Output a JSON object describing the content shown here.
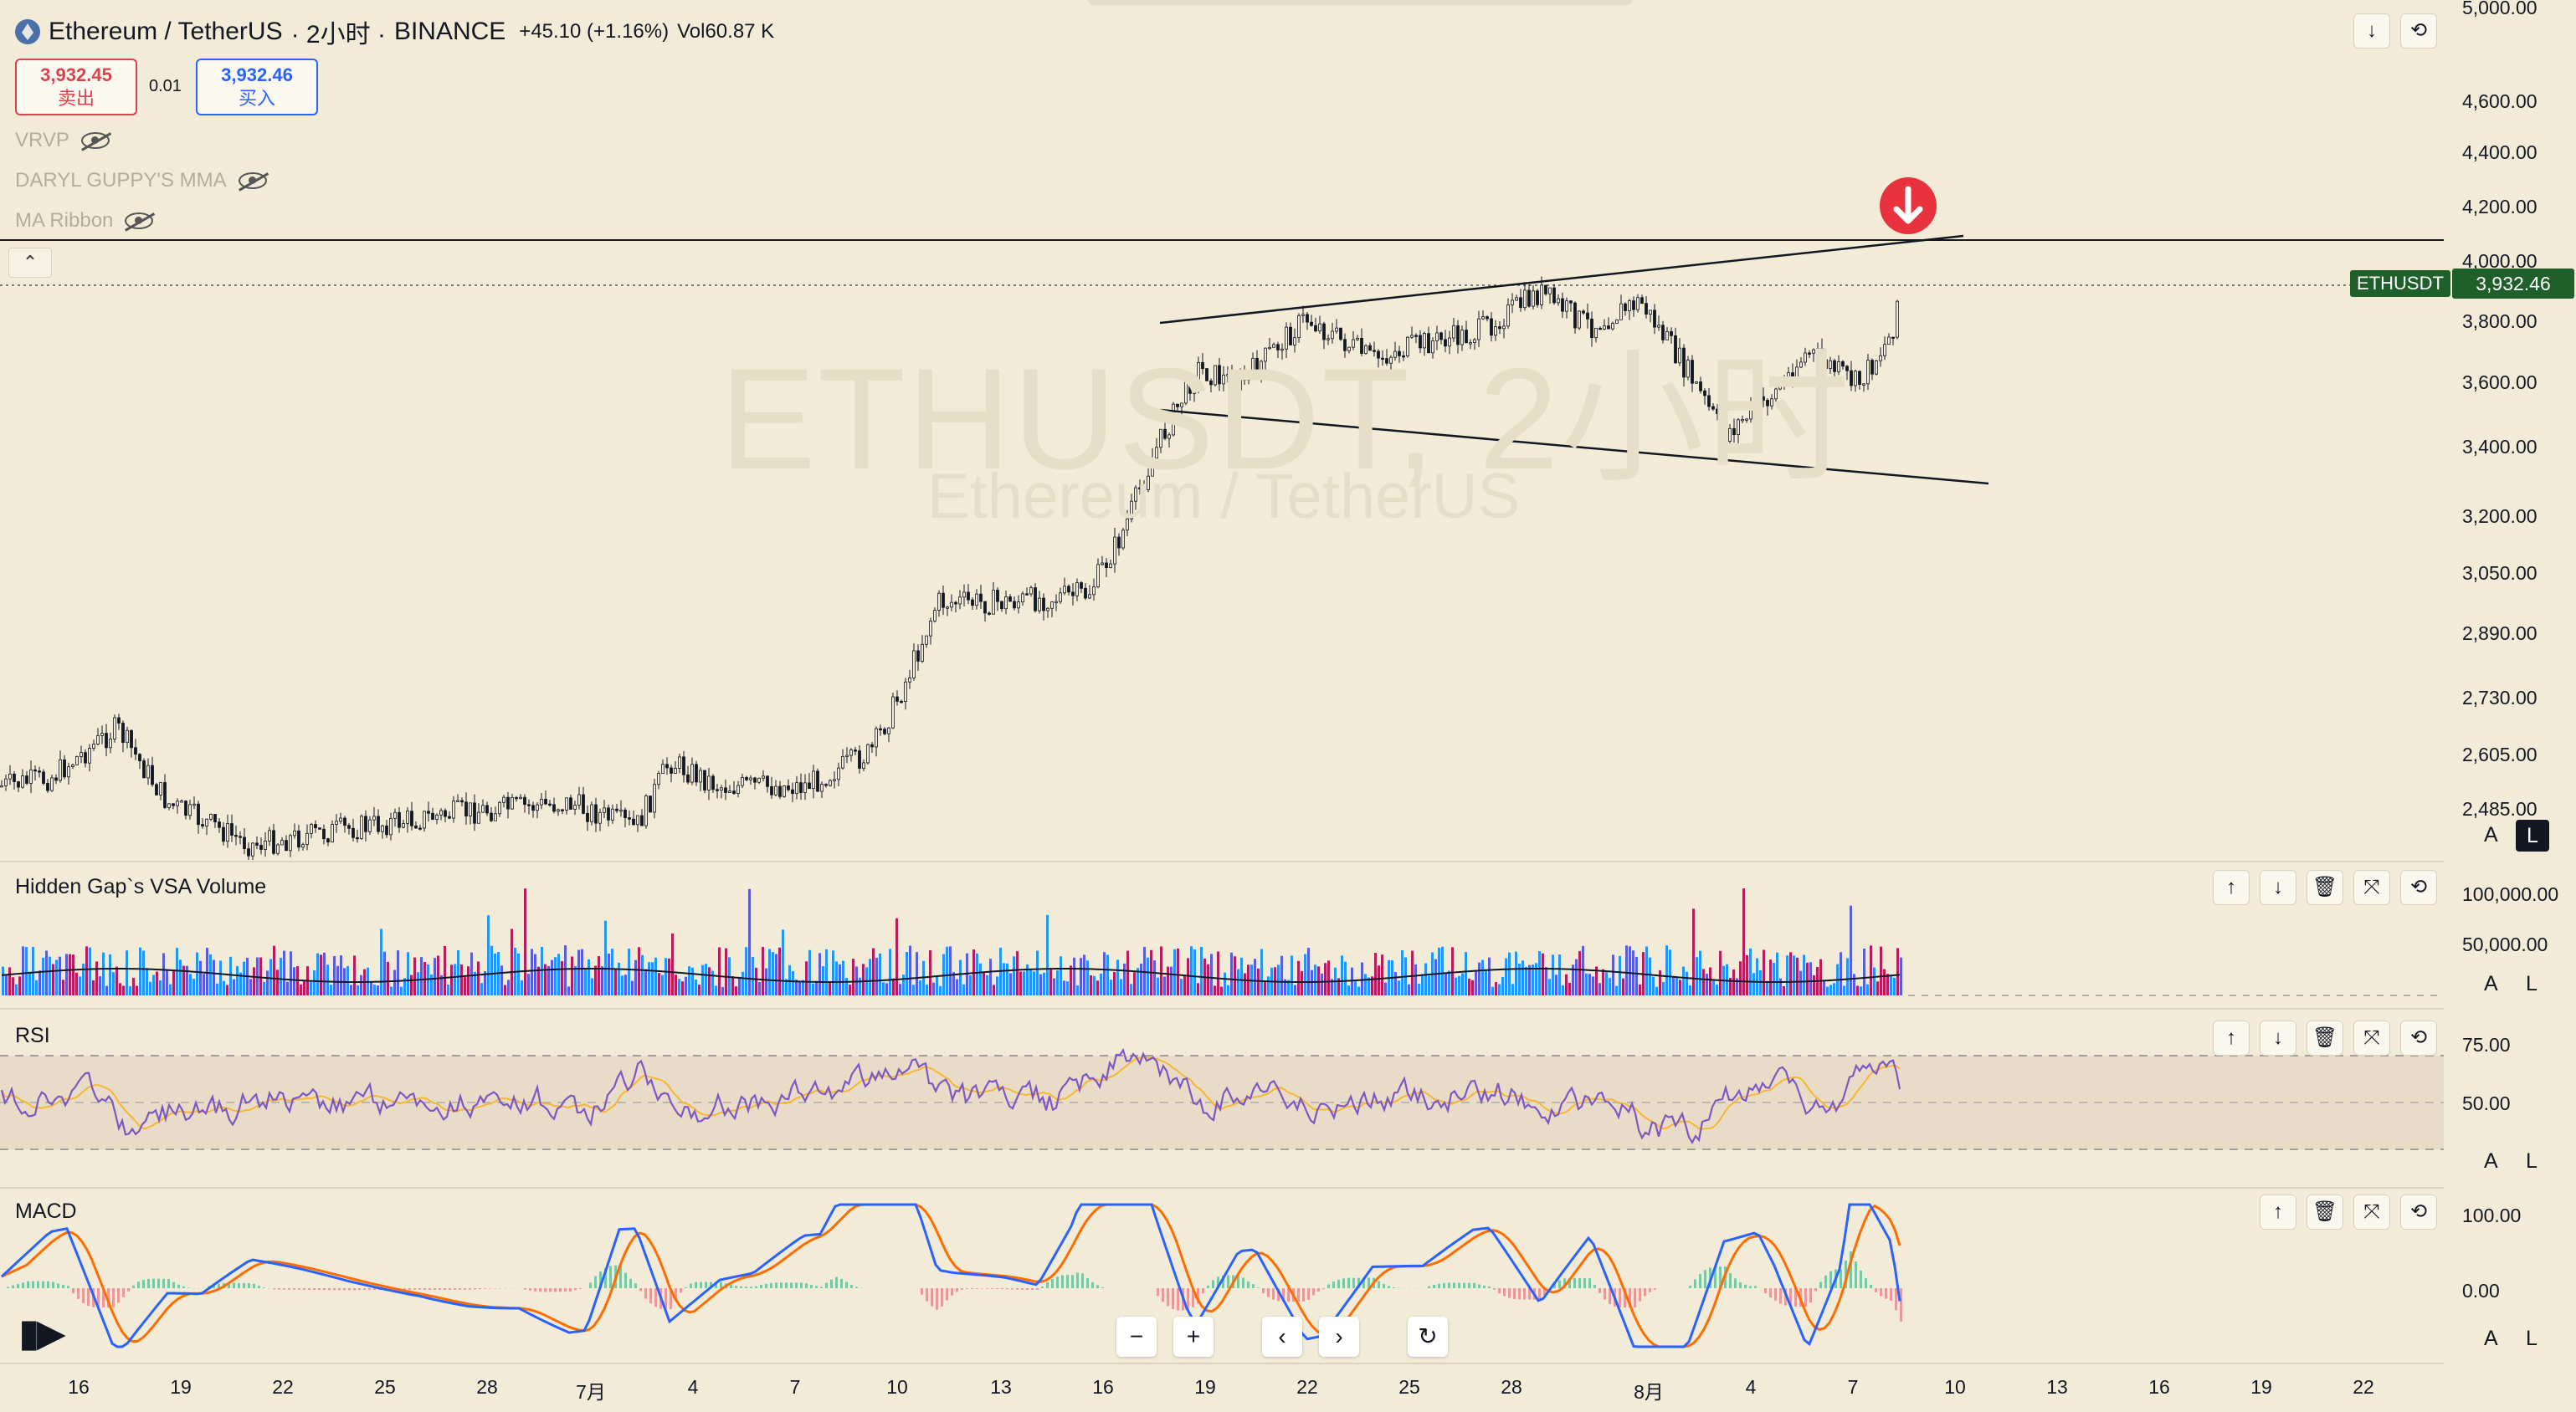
{
  "header": {
    "symbol_name": "Ethereum / TetherUS",
    "interval": "· 2小时 ·",
    "exchange": "BINANCE",
    "change": "+45.10 (+1.16%)",
    "volume": "Vol60.87 K"
  },
  "trade": {
    "sell_price": "3,932.45",
    "sell_label": "卖出",
    "spread": "0.01",
    "buy_price": "3,932.46",
    "buy_label": "买入"
  },
  "indicators": [
    {
      "label": "VRVP"
    },
    {
      "label": "DARYL GUPPY'S MMA"
    },
    {
      "label": "MA Ribbon"
    }
  ],
  "watermark": {
    "line1": "ETHUSDT, 2小时",
    "line2": "Ethereum / TetherUS"
  },
  "price_axis": {
    "labels": [
      "5,000.00",
      "4,600.00",
      "4,400.00",
      "4,200.00",
      "4,000.00",
      "3,800.00",
      "3,600.00",
      "3,400.00",
      "3,200.00",
      "3,050.00",
      "2,890.00",
      "2,730.00",
      "2,605.00",
      "2,485.00"
    ],
    "current_symbol": "ETHUSDT",
    "current_price": "3,932.46"
  },
  "volume_pane": {
    "title": "Hidden Gap`s VSA Volume",
    "axis": [
      "100,000.00",
      "50,000.00"
    ]
  },
  "rsi_pane": {
    "title": "RSI",
    "axis": [
      "75.00",
      "50.00"
    ]
  },
  "macd_pane": {
    "title": "MACD",
    "axis": [
      "100.00",
      "0.00"
    ]
  },
  "scale_buttons": {
    "auto": "A",
    "log": "L"
  },
  "time_axis": [
    "16",
    "19",
    "22",
    "25",
    "28",
    "7月",
    "4",
    "7",
    "10",
    "13",
    "16",
    "19",
    "22",
    "25",
    "28",
    "8月",
    "4",
    "7",
    "10",
    "13",
    "16",
    "19",
    "22"
  ],
  "icons": {
    "header_down": "arrow-down-icon",
    "header_fullscreen": "fullscreen-icon",
    "signal": "sell-signal-arrow-icon"
  },
  "colors": {
    "background": "#f1ebd8",
    "sell": "#d8434c",
    "buy": "#2962ff",
    "price_tag": "#1f5f2a",
    "rsi_line": "#7e57c2",
    "rsi_signal": "#f5b731",
    "macd_line": "#2962ff",
    "macd_signal": "#ff6d00",
    "vol_up": "#2196f3",
    "vol_down": "#b71c5c"
  }
}
